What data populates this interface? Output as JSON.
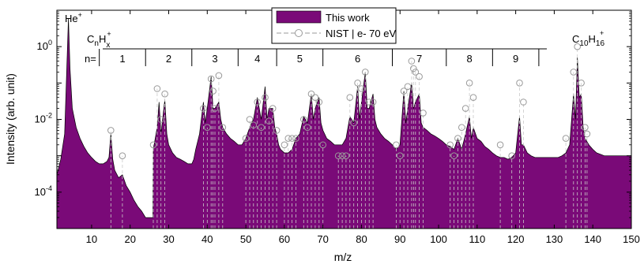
{
  "chart_data": {
    "type": "area",
    "xlabel": "m/z",
    "ylabel": "Intensity (arb. unit)",
    "xlim": [
      1,
      150
    ],
    "ylim": [
      1e-05,
      10
    ],
    "yscale": "log",
    "xticks": [
      10,
      20,
      30,
      40,
      50,
      60,
      70,
      80,
      90,
      100,
      110,
      120,
      130,
      140,
      150
    ],
    "yticks": [
      {
        "value": 0.0001,
        "base": "10",
        "exp": "-4"
      },
      {
        "value": 0.01,
        "base": "10",
        "exp": "-2"
      },
      {
        "value": 1,
        "base": "10",
        "exp": "0"
      }
    ],
    "legend": {
      "position": "top-center",
      "entries": [
        "This work",
        "NIST | e- 70 eV"
      ]
    },
    "annotations": {
      "he": {
        "base": "He",
        "sup": "+"
      },
      "cnhx": {
        "C": "C",
        "n": "n",
        "H": "H",
        "x": "x",
        "plus": "+"
      },
      "product": {
        "C": "C",
        "c": "10",
        "H": "H",
        "h": "16",
        "plus": "+"
      },
      "n_prefix": "n=",
      "clusters": [
        {
          "label": "1",
          "start": 12,
          "end": 24
        },
        {
          "label": "2",
          "start": 24,
          "end": 36
        },
        {
          "label": "3",
          "start": 36,
          "end": 48
        },
        {
          "label": "4",
          "start": 48,
          "end": 58
        },
        {
          "label": "5",
          "start": 58,
          "end": 70
        },
        {
          "label": "6",
          "start": 70,
          "end": 88
        },
        {
          "label": "7",
          "start": 88,
          "end": 102
        },
        {
          "label": "8",
          "start": 102,
          "end": 114
        },
        {
          "label": "9",
          "start": 114,
          "end": 126
        }
      ]
    },
    "series": [
      {
        "name": "This work",
        "color": "#7a0a78",
        "points": [
          [
            1,
            0.0003
          ],
          [
            2,
            0.0008
          ],
          [
            3,
            0.004
          ],
          [
            4,
            6.0
          ],
          [
            4.4,
            0.25
          ],
          [
            5,
            0.02
          ],
          [
            6,
            0.006
          ],
          [
            7,
            0.003
          ],
          [
            8,
            0.0018
          ],
          [
            9,
            0.0012
          ],
          [
            10,
            0.0009
          ],
          [
            11,
            0.0007
          ],
          [
            12,
            0.0006
          ],
          [
            13,
            0.0006
          ],
          [
            14,
            0.0007
          ],
          [
            14.5,
            0.0009
          ],
          [
            15,
            0.004
          ],
          [
            15.5,
            0.0008
          ],
          [
            16,
            0.0004
          ],
          [
            17,
            0.00025
          ],
          [
            18,
            0.0003
          ],
          [
            19,
            0.00015
          ],
          [
            20,
            0.0001
          ],
          [
            21,
            6e-05
          ],
          [
            22,
            4e-05
          ],
          [
            23,
            3e-05
          ],
          [
            24,
            2e-05
          ],
          [
            25,
            2e-05
          ],
          [
            25.9,
            2e-05
          ],
          [
            26,
            0.0015
          ],
          [
            27,
            0.006
          ],
          [
            27.5,
            0.03
          ],
          [
            28,
            0.004
          ],
          [
            28.5,
            0.012
          ],
          [
            29,
            0.035
          ],
          [
            29.5,
            0.004
          ],
          [
            30,
            0.002
          ],
          [
            31,
            0.0012
          ],
          [
            32,
            0.0009
          ],
          [
            33,
            0.0008
          ],
          [
            34,
            0.0007
          ],
          [
            35,
            0.0006
          ],
          [
            36,
            0.0006
          ],
          [
            36.5,
            0.0008
          ],
          [
            37,
            0.0015
          ],
          [
            38,
            0.004
          ],
          [
            39,
            0.03
          ],
          [
            39.5,
            0.008
          ],
          [
            40,
            0.02
          ],
          [
            41,
            0.15
          ],
          [
            41.5,
            0.02
          ],
          [
            42,
            0.02
          ],
          [
            43,
            0.03
          ],
          [
            43.5,
            0.01
          ],
          [
            44,
            0.006
          ],
          [
            45,
            0.004
          ],
          [
            46,
            0.003
          ],
          [
            47,
            0.0025
          ],
          [
            48,
            0.002
          ],
          [
            49,
            0.002
          ],
          [
            50,
            0.003
          ],
          [
            51,
            0.006
          ],
          [
            52,
            0.01
          ],
          [
            53,
            0.04
          ],
          [
            54,
            0.01
          ],
          [
            55,
            0.08
          ],
          [
            55.5,
            0.01
          ],
          [
            56,
            0.02
          ],
          [
            57,
            0.02
          ],
          [
            57.5,
            0.006
          ],
          [
            58,
            0.004
          ],
          [
            58.5,
            0.002
          ],
          [
            59,
            0.0015
          ],
          [
            60,
            0.0012
          ],
          [
            61,
            0.0012
          ],
          [
            62,
            0.0015
          ],
          [
            63,
            0.003
          ],
          [
            64,
            0.004
          ],
          [
            65,
            0.012
          ],
          [
            66,
            0.008
          ],
          [
            67,
            0.05
          ],
          [
            67.5,
            0.01
          ],
          [
            68,
            0.02
          ],
          [
            69,
            0.04
          ],
          [
            69.5,
            0.008
          ],
          [
            70,
            0.005
          ],
          [
            71,
            0.003
          ],
          [
            72,
            0.0025
          ],
          [
            73,
            0.002
          ],
          [
            74,
            0.002
          ],
          [
            75,
            0.002
          ],
          [
            76,
            0.003
          ],
          [
            77,
            0.012
          ],
          [
            78,
            0.008
          ],
          [
            79,
            0.08
          ],
          [
            79.5,
            0.01
          ],
          [
            80,
            0.03
          ],
          [
            81,
            0.2
          ],
          [
            81.5,
            0.02
          ],
          [
            82,
            0.02
          ],
          [
            83,
            0.05
          ],
          [
            83.5,
            0.01
          ],
          [
            84,
            0.006
          ],
          [
            85,
            0.004
          ],
          [
            86,
            0.003
          ],
          [
            87,
            0.0025
          ],
          [
            88,
            0.002
          ],
          [
            89,
            0.0015
          ],
          [
            90,
            0.002
          ],
          [
            91,
            0.06
          ],
          [
            91.5,
            0.008
          ],
          [
            92,
            0.02
          ],
          [
            93,
            0.1
          ],
          [
            93.5,
            0.02
          ],
          [
            94,
            0.03
          ],
          [
            95,
            0.05
          ],
          [
            95.5,
            0.008
          ],
          [
            96,
            0.006
          ],
          [
            97,
            0.005
          ],
          [
            98,
            0.004
          ],
          [
            99,
            0.0035
          ],
          [
            100,
            0.003
          ],
          [
            101,
            0.0025
          ],
          [
            102,
            0.002
          ],
          [
            103,
            0.0018
          ],
          [
            104,
            0.0015
          ],
          [
            105,
            0.003
          ],
          [
            106,
            0.0015
          ],
          [
            107,
            0.004
          ],
          [
            108,
            0.012
          ],
          [
            108.5,
            0.003
          ],
          [
            109,
            0.006
          ],
          [
            110,
            0.003
          ],
          [
            111,
            0.0025
          ],
          [
            112,
            0.0018
          ],
          [
            113,
            0.0015
          ],
          [
            114,
            0.0012
          ],
          [
            115,
            0.001
          ],
          [
            116,
            0.0009
          ],
          [
            117,
            0.0009
          ],
          [
            118,
            0.0008
          ],
          [
            119,
            0.0009
          ],
          [
            120,
            0.0012
          ],
          [
            121,
            0.012
          ],
          [
            121.5,
            0.002
          ],
          [
            122,
            0.002
          ],
          [
            123,
            0.0012
          ],
          [
            124,
            0.001
          ],
          [
            125,
            0.0009
          ],
          [
            126,
            0.0009
          ],
          [
            127,
            0.0009
          ],
          [
            128,
            0.0009
          ],
          [
            129,
            0.0009
          ],
          [
            130,
            0.0009
          ],
          [
            131,
            0.0009
          ],
          [
            132,
            0.001
          ],
          [
            133,
            0.0012
          ],
          [
            134,
            0.002
          ],
          [
            135,
            0.05
          ],
          [
            135.5,
            0.01
          ],
          [
            136,
            0.5
          ],
          [
            136.5,
            0.04
          ],
          [
            137,
            0.05
          ],
          [
            137.5,
            0.006
          ],
          [
            138,
            0.003
          ],
          [
            139,
            0.002
          ],
          [
            140,
            0.0015
          ],
          [
            141,
            0.0012
          ],
          [
            142,
            0.0011
          ],
          [
            143,
            0.001
          ],
          [
            144,
            0.001
          ],
          [
            145,
            0.001
          ],
          [
            146,
            0.001
          ],
          [
            147,
            0.001
          ],
          [
            148,
            0.001
          ],
          [
            149,
            0.001
          ],
          [
            150,
            0.001
          ]
        ]
      },
      {
        "name": "NIST | e- 70 eV",
        "color": "#9a9a9a",
        "points": [
          [
            15,
            0.005
          ],
          [
            18,
            0.001
          ],
          [
            26,
            0.002
          ],
          [
            27,
            0.07
          ],
          [
            28,
            0.01
          ],
          [
            29,
            0.05
          ],
          [
            39,
            0.02
          ],
          [
            40,
            0.006
          ],
          [
            41,
            0.13
          ],
          [
            42,
            0.02
          ],
          [
            43,
            0.16
          ],
          [
            44,
            0.006
          ],
          [
            50,
            0.003
          ],
          [
            51,
            0.01
          ],
          [
            52,
            0.007
          ],
          [
            53,
            0.03
          ],
          [
            54,
            0.006
          ],
          [
            55,
            0.04
          ],
          [
            56,
            0.009
          ],
          [
            57,
            0.02
          ],
          [
            58,
            0.005
          ],
          [
            65,
            0.01
          ],
          [
            66,
            0.006
          ],
          [
            67,
            0.05
          ],
          [
            68,
            0.04
          ],
          [
            69,
            0.03
          ],
          [
            77,
            0.04
          ],
          [
            78,
            0.008
          ],
          [
            79,
            0.1
          ],
          [
            80,
            0.07
          ],
          [
            81,
            0.2
          ],
          [
            82,
            0.03
          ],
          [
            83,
            0.03
          ],
          [
            91,
            0.06
          ],
          [
            92,
            0.08
          ],
          [
            93,
            0.4
          ],
          [
            94,
            0.2
          ],
          [
            95,
            0.15
          ],
          [
            96,
            0.015
          ],
          [
            107,
            0.02
          ],
          [
            108,
            0.1
          ],
          [
            109,
            0.04
          ],
          [
            121,
            0.1
          ],
          [
            122,
            0.03
          ],
          [
            135,
            0.2
          ],
          [
            136,
            1.0
          ],
          [
            137,
            0.1
          ],
          [
            138,
            0.006
          ],
          [
            41.5,
            0.06
          ],
          [
            93.5,
            0.25
          ],
          [
            70,
            0.002
          ],
          [
            60,
            0.002
          ],
          [
            61,
            0.003
          ],
          [
            62,
            0.003
          ],
          [
            63,
            0.003
          ],
          [
            74,
            0.001
          ],
          [
            75,
            0.001
          ],
          [
            76,
            0.001
          ],
          [
            89,
            0.002
          ],
          [
            90,
            0.001
          ],
          [
            103,
            0.002
          ],
          [
            104,
            0.001
          ],
          [
            105,
            0.003
          ],
          [
            106,
            0.006
          ],
          [
            116,
            0.002
          ],
          [
            119,
            0.001
          ],
          [
            133,
            0.003
          ],
          [
            138.5,
            0.004
          ]
        ]
      }
    ]
  }
}
